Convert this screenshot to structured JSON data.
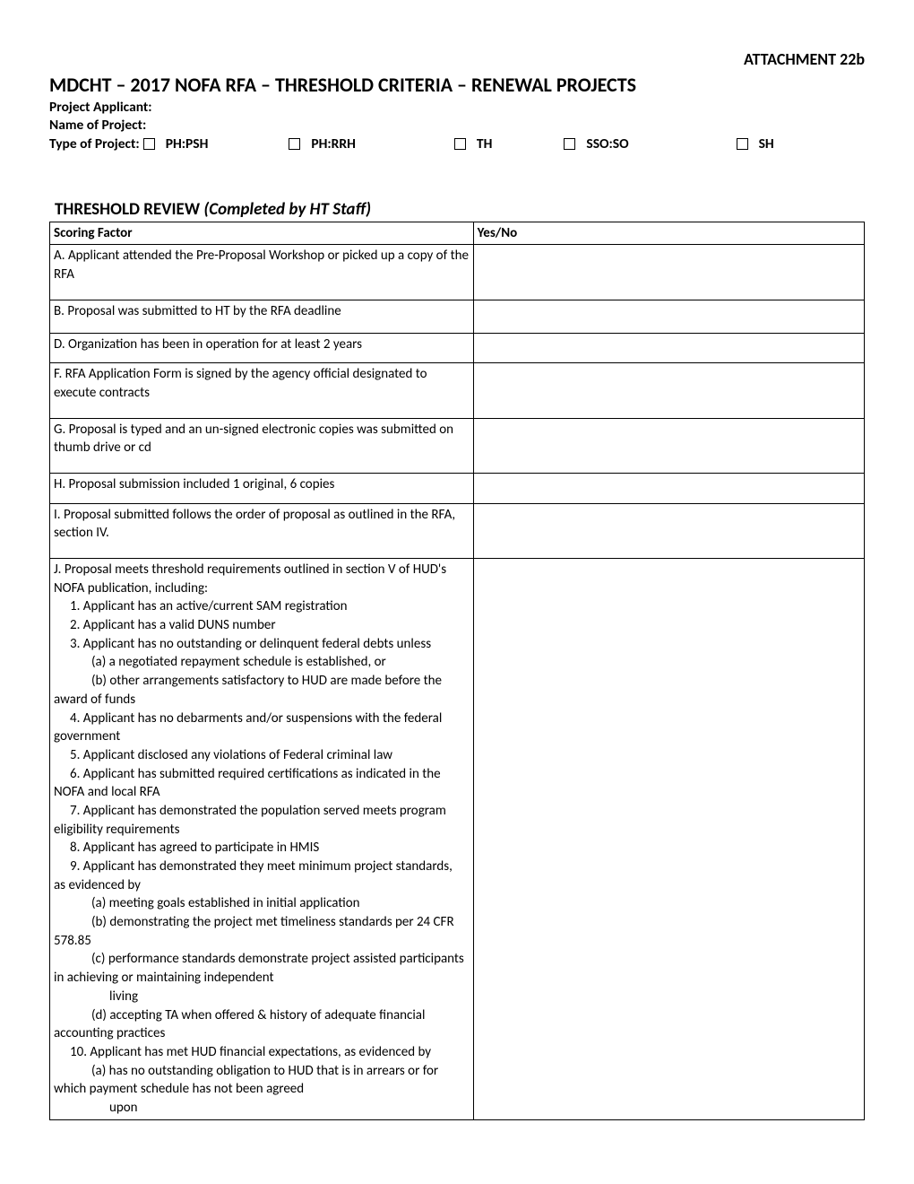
{
  "attachment_label": "ATTACHMENT 22b",
  "main_title": "MDCHT – 2017 NOFA RFA – THRESHOLD CRITERIA – RENEWAL PROJECTS",
  "fields": {
    "applicant_label": "Project Applicant:",
    "name_label": "Name of Project:",
    "type_label": "Type of Project:"
  },
  "type_options": {
    "o1": "PH:PSH",
    "o2": "PH:RRH",
    "o3": "TH",
    "o4": "SSO:SO",
    "o5": "SH"
  },
  "section_title_b": "THRESHOLD REVIEW ",
  "section_title_i": "(Completed by HT Staff)",
  "table": {
    "header_factor": "Scoring Factor",
    "header_yesno": "Yes/No",
    "rows": {
      "A": "A.  Applicant attended the Pre-Proposal Workshop or picked up a copy of the RFA",
      "B": "B. Proposal was submitted to HT by the RFA deadline",
      "D": "D. Organization has been in operation for at least 2 years",
      "F": "F. RFA Application Form is signed by the agency official designated to execute contracts",
      "G": "G. Proposal is typed and an un-signed electronic copies was submitted on thumb drive or cd",
      "H": "H. Proposal submission included 1 original, 6 copies",
      "I": "I. Proposal submitted follows the order of proposal as outlined in the RFA, section IV."
    },
    "J": {
      "intro": "J. Proposal meets threshold requirements outlined in section V of HUD's NOFA publication, including:",
      "n1": "1. Applicant has an active/current SAM registration",
      "n2": "2. Applicant has a valid DUNS number",
      "n3": "3. Applicant has no outstanding or delinquent federal debts unless",
      "n3a": "(a) a negotiated repayment schedule is established, or",
      "n3b_1": "(b) other arrangements satisfactory to HUD are made before the",
      "n3b_2": "award of funds",
      "n4_1": "4. Applicant has no debarments and/or suspensions with the federal",
      "n4_2": "government",
      "n5": "5. Applicant disclosed any violations of Federal criminal law",
      "n6_1": "6. Applicant has submitted required certifications as indicated in the",
      "n6_2": "NOFA and local RFA",
      "n7_1": "7. Applicant has demonstrated the population served meets program",
      "n7_2": "eligibility requirements",
      "n8": "8. Applicant has agreed to participate in HMIS",
      "n9_1": "9. Applicant has demonstrated they meet minimum project standards,",
      "n9_2": "as evidenced by",
      "n9a": "(a) meeting goals established in initial application",
      "n9b_1": "(b) demonstrating the project met timeliness standards per 24 CFR",
      "n9b_2": "578.85",
      "n9c_1": "(c) performance standards demonstrate project assisted participants",
      "n9c_2": "in achieving or maintaining independent",
      "n9c_3": "living",
      "n9d_1": "(d) accepting TA when offered & history of adequate financial",
      "n9d_2": "accounting practices",
      "n10": "10.  Applicant has met HUD financial expectations, as evidenced by",
      "n10a_1": "(a) has no outstanding obligation to HUD that is in arrears or for",
      "n10a_2": "which payment schedule has not been agreed",
      "n10a_3": "upon"
    }
  }
}
